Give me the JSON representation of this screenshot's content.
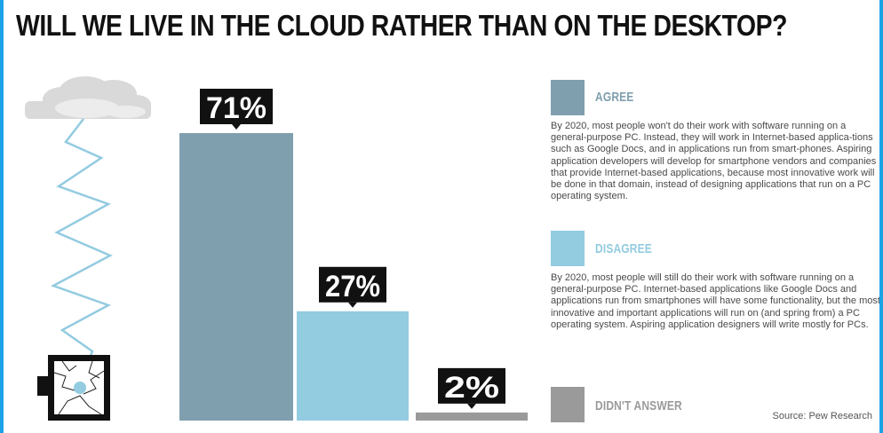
{
  "title": "WILL WE LIVE IN THE CLOUD RATHER THAN ON THE DESKTOP?",
  "source": "Source: Pew Research",
  "colors": {
    "agree": "#7f9fae",
    "disagree": "#93cbe0",
    "no_answer": "#9a9a9a",
    "frame": "#1ba3e6",
    "label_box": "#111111"
  },
  "icons": [
    "cloud-icon",
    "lightning-icon",
    "broken-pc-icon"
  ],
  "legend": [
    {
      "label": "AGREE",
      "color": "#7f9fae",
      "description": "By 2020, most people won't do their work with software running on a general-purpose PC. Instead, they will work in Internet-based applica-tions such as Google Docs, and in applications run from smart-phones. Aspiring application developers will develop for smartphone vendors and companies that provide Internet-based applications, because most innovative work will be done in that domain, instead of designing applications that run on a PC operating system."
    },
    {
      "label": "DISAGREE",
      "color": "#93cbe0",
      "description": "By 2020, most people will still do their work with software running on a general-purpose PC. Internet-based applications like Google Docs and applications run from smartphones will have some functionality, but the most innovative and important applications will run on (and spring from) a PC operating system. Aspiring application designers will write mostly for PCs."
    },
    {
      "label": "DIDN'T ANSWER",
      "color": "#9a9a9a",
      "description": ""
    }
  ],
  "chart_data": {
    "type": "bar",
    "title": "WILL WE LIVE IN THE CLOUD RATHER THAN ON THE DESKTOP?",
    "categories": [
      "AGREE",
      "DISAGREE",
      "DIDN'T ANSWER"
    ],
    "values": [
      71,
      27,
      2
    ],
    "data_labels": [
      "71%",
      "27%",
      "2%"
    ],
    "unit": "%",
    "xlabel": "",
    "ylabel": "",
    "ylim": [
      0,
      100
    ],
    "grid": false,
    "legend_position": "right"
  }
}
